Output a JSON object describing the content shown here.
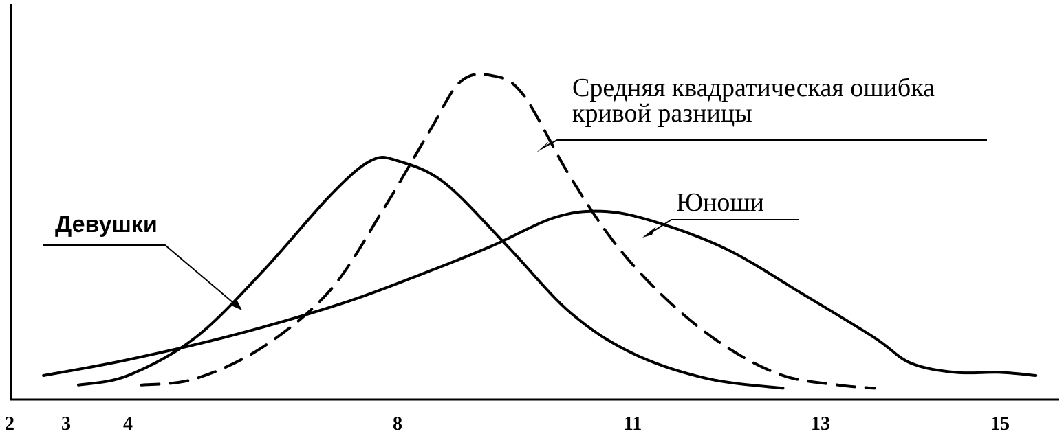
{
  "chart_data": {
    "type": "line",
    "title": "",
    "xlabel": "",
    "ylabel": "",
    "xlim": [
      2,
      16
    ],
    "ylim": [
      0,
      1
    ],
    "grid": false,
    "x_ticks": [
      2,
      3,
      4,
      8,
      11,
      13,
      15
    ],
    "x_tick_labels": [
      "2",
      "3",
      "4",
      "8",
      "11",
      "13",
      "15"
    ],
    "series": [
      {
        "name": "Девушки",
        "style": "solid",
        "points": [
          [
            3.2,
            0.02
          ],
          [
            4.0,
            0.05
          ],
          [
            5.0,
            0.17
          ],
          [
            6.0,
            0.38
          ],
          [
            7.0,
            0.62
          ],
          [
            7.6,
            0.73
          ],
          [
            8.0,
            0.73
          ],
          [
            8.6,
            0.66
          ],
          [
            9.4,
            0.46
          ],
          [
            10.2,
            0.25
          ],
          [
            11.0,
            0.12
          ],
          [
            11.8,
            0.04
          ],
          [
            12.6,
            0.01
          ]
        ]
      },
      {
        "name": "Юноши",
        "style": "solid",
        "points": [
          [
            2.6,
            0.05
          ],
          [
            4.0,
            0.1
          ],
          [
            5.6,
            0.18
          ],
          [
            7.2,
            0.28
          ],
          [
            8.4,
            0.38
          ],
          [
            9.2,
            0.46
          ],
          [
            10.0,
            0.55
          ],
          [
            10.6,
            0.57
          ],
          [
            11.2,
            0.54
          ],
          [
            12.0,
            0.45
          ],
          [
            12.8,
            0.31
          ],
          [
            13.6,
            0.17
          ],
          [
            14.0,
            0.09
          ],
          [
            14.5,
            0.06
          ],
          [
            15.0,
            0.06
          ],
          [
            15.4,
            0.05
          ]
        ]
      },
      {
        "name": "Средняя квадратическая ошибка кривой разницы",
        "style": "dashed",
        "points": [
          [
            4.2,
            0.02
          ],
          [
            5.0,
            0.04
          ],
          [
            6.0,
            0.14
          ],
          [
            7.0,
            0.32
          ],
          [
            7.8,
            0.58
          ],
          [
            8.4,
            0.82
          ],
          [
            8.8,
            0.98
          ],
          [
            9.2,
            1.0
          ],
          [
            9.6,
            0.94
          ],
          [
            10.2,
            0.68
          ],
          [
            10.8,
            0.46
          ],
          [
            11.4,
            0.28
          ],
          [
            12.0,
            0.14
          ],
          [
            12.6,
            0.05
          ],
          [
            13.2,
            0.02
          ],
          [
            13.6,
            0.01
          ]
        ]
      }
    ],
    "annotations": [
      {
        "text": "Средняя квадратическая ошибка",
        "target": "Средняя квадратическая ошибка кривой разницы"
      },
      {
        "text": "кривой разницы",
        "target": "Средняя квадратическая ошибка кривой разницы"
      },
      {
        "text": "Юноши",
        "target": "Юноши"
      },
      {
        "text": "Девушки",
        "target": "Девушки"
      }
    ]
  }
}
